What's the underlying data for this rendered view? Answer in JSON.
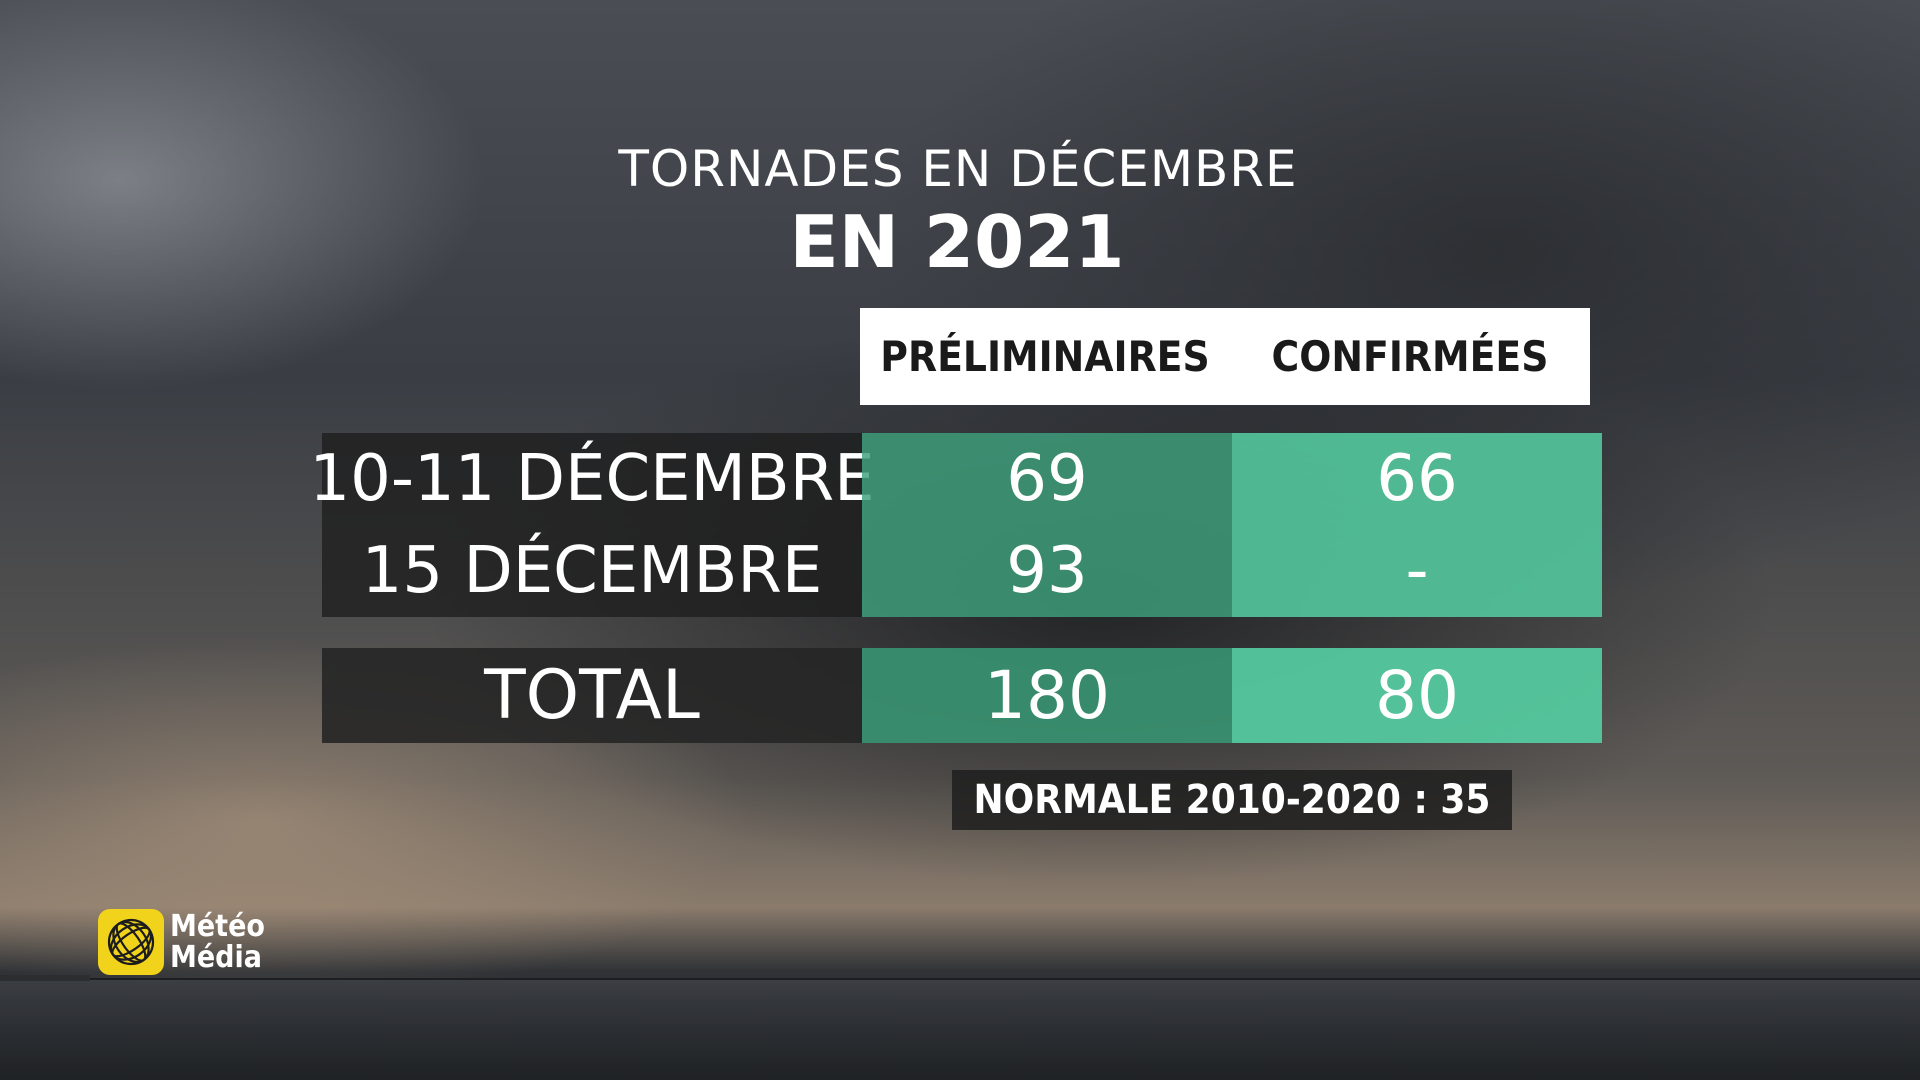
{
  "title": {
    "line1": "TORNADES EN DÉCEMBRE",
    "line2": "EN 2021"
  },
  "table": {
    "headers": {
      "preliminaires": "PRÉLIMINAIRES",
      "confirmees": "CONFIRMÉES"
    },
    "rows": [
      {
        "label": "10-11 DÉCEMBRE",
        "preliminaires": "69",
        "confirmees": "66"
      },
      {
        "label": "15 DÉCEMBRE",
        "preliminaires": "93",
        "confirmees": "-"
      }
    ],
    "total": {
      "label": "TOTAL",
      "preliminaires": "180",
      "confirmees": "80"
    }
  },
  "normale": "NORMALE 2010-2020 : 35",
  "logo": {
    "line1": "Météo",
    "line2": "Média",
    "color": "#f2d31b"
  },
  "colors": {
    "prelim_green": "#3ea07d",
    "confirm_green": "#52c49b"
  }
}
